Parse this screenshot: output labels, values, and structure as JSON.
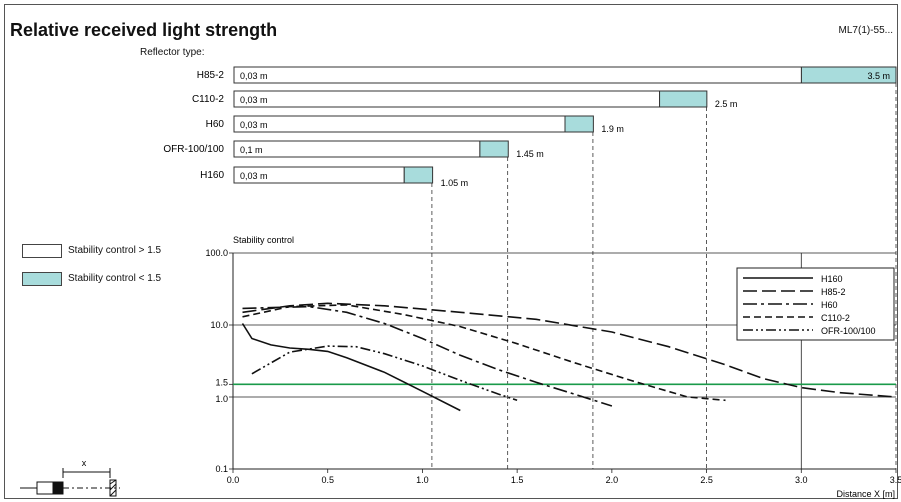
{
  "header": {
    "title": "Relative received light strength",
    "code": "ML7(1)-55...",
    "reflector_type_label": "Reflector type:"
  },
  "legend_boxes": [
    {
      "label": "Stability control > 1.5",
      "color": "#ffffff"
    },
    {
      "label": "Stability control < 1.5",
      "color": "#a8dcdc"
    }
  ],
  "colors": {
    "cyan": "#a8dcdc",
    "threshold_line": "#1a9a4a"
  },
  "chart_data": [
    {
      "type": "bar",
      "title": "",
      "x_scale_max": 3.5,
      "bars": [
        {
          "name": "H85-2",
          "start_label": "0,03 m",
          "start": 0.03,
          "stable_end": 3.0,
          "end": 3.5,
          "end_label": "3.5 m"
        },
        {
          "name": "C110-2",
          "start_label": "0,03 m",
          "start": 0.03,
          "stable_end": 2.25,
          "end": 2.5,
          "end_label": "2.5 m"
        },
        {
          "name": "H60",
          "start_label": "0,03 m",
          "start": 0.03,
          "stable_end": 1.75,
          "end": 1.9,
          "end_label": "1.9 m"
        },
        {
          "name": "OFR-100/100",
          "start_label": "0,1 m",
          "start": 0.1,
          "stable_end": 1.3,
          "end": 1.45,
          "end_label": "1.45 m"
        },
        {
          "name": "H160",
          "start_label": "0,03 m",
          "start": 0.03,
          "stable_end": 0.9,
          "end": 1.05,
          "end_label": "1.05 m"
        }
      ]
    },
    {
      "type": "line",
      "ylabel": "Stability control",
      "xlabel": "Distance X [m]",
      "y_scale": "log",
      "ylim": [
        0.1,
        100
      ],
      "xlim": [
        0,
        3.5
      ],
      "x_ticks": [
        "0.0",
        "0.5",
        "1.0",
        "1.5",
        "2.0",
        "2.5",
        "3.0",
        "3.5"
      ],
      "y_ticks": [
        "100.0",
        "10.0",
        "1.5",
        "1.0",
        "0.1"
      ],
      "threshold": 1.5,
      "dashed_verticals": [
        1.05,
        1.45,
        1.9,
        2.5,
        3.5
      ],
      "series": [
        {
          "name": "H160",
          "dash": "",
          "x": [
            0.05,
            0.1,
            0.2,
            0.3,
            0.4,
            0.5,
            0.6,
            0.8,
            1.0,
            1.2
          ],
          "y": [
            10.5,
            6.5,
            5.3,
            4.8,
            4.6,
            4.3,
            3.5,
            2.2,
            1.2,
            0.65
          ]
        },
        {
          "name": "H85-2",
          "dash": "14 5",
          "x": [
            0.05,
            0.3,
            0.5,
            0.8,
            1.2,
            1.6,
            2.0,
            2.3,
            2.6,
            2.8,
            3.0,
            3.2,
            3.5
          ],
          "y": [
            15,
            18.5,
            20,
            18.5,
            15,
            12,
            8,
            5,
            2.8,
            1.8,
            1.35,
            1.15,
            1.0
          ]
        },
        {
          "name": "H60",
          "dash": "14 4 3 4",
          "x": [
            0.05,
            0.4,
            0.6,
            0.8,
            1.0,
            1.2,
            1.4,
            1.6,
            1.8,
            2.0
          ],
          "y": [
            17,
            18,
            15,
            10.5,
            6.5,
            3.8,
            2.4,
            1.6,
            1.1,
            0.75
          ]
        },
        {
          "name": "C110-2",
          "dash": "7 4",
          "x": [
            0.05,
            0.3,
            0.6,
            0.9,
            1.2,
            1.5,
            1.8,
            2.1,
            2.4,
            2.6
          ],
          "y": [
            13,
            18,
            19,
            14,
            9.5,
            5.5,
            3.0,
            1.7,
            1.0,
            0.9
          ]
        },
        {
          "name": "OFR-100/100",
          "dash": "10 3 2 3 2 3",
          "x": [
            0.1,
            0.3,
            0.5,
            0.65,
            0.8,
            1.0,
            1.2,
            1.4,
            1.5
          ],
          "y": [
            2.1,
            4.2,
            5.1,
            5.0,
            4.0,
            2.7,
            1.7,
            1.1,
            0.9
          ]
        }
      ]
    }
  ]
}
